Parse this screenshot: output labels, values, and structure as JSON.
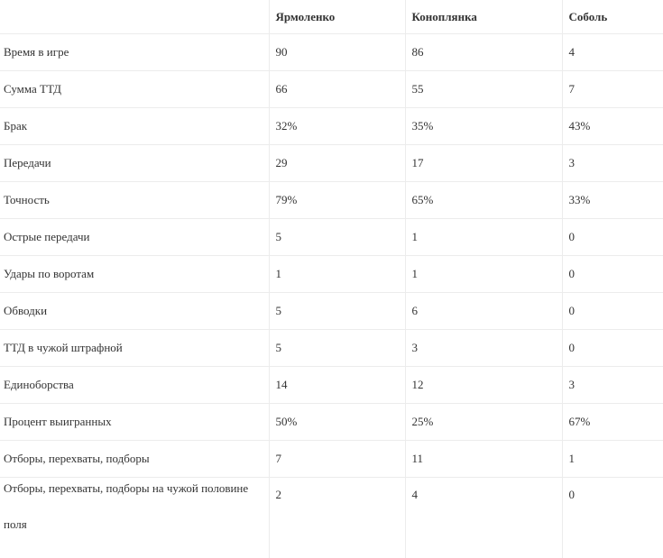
{
  "table": {
    "headers": [
      "",
      "Ярмоленко",
      "Коноплянка",
      "Соболь"
    ],
    "rows": [
      {
        "label": "Время в игре",
        "values": [
          "90",
          "86",
          "4"
        ]
      },
      {
        "label": "Сумма ТТД",
        "values": [
          "66",
          "55",
          "7"
        ]
      },
      {
        "label": "Брак",
        "values": [
          "32%",
          "35%",
          "43%"
        ]
      },
      {
        "label": "Передачи",
        "values": [
          "29",
          "17",
          "3"
        ]
      },
      {
        "label": "Точность",
        "values": [
          "79%",
          "65%",
          "33%"
        ]
      },
      {
        "label": "Острые передачи",
        "values": [
          "5",
          "1",
          "0"
        ]
      },
      {
        "label": "Удары по воротам",
        "values": [
          "1",
          "1",
          "0"
        ]
      },
      {
        "label": "Обводки",
        "values": [
          "5",
          "6",
          "0"
        ]
      },
      {
        "label": "ТТД в чужой штрафной",
        "values": [
          "5",
          "3",
          "0"
        ]
      },
      {
        "label": "Единоборства",
        "values": [
          "14",
          "12",
          "3"
        ]
      },
      {
        "label": "Процент выигранных",
        "values": [
          "50%",
          "25%",
          "67%"
        ]
      },
      {
        "label": "Отборы, перехваты, подборы",
        "values": [
          "7",
          "11",
          "1"
        ]
      },
      {
        "label": "Отборы, перехваты, подборы на чужой половине поля",
        "values": [
          "2",
          "4",
          "0"
        ]
      }
    ]
  }
}
